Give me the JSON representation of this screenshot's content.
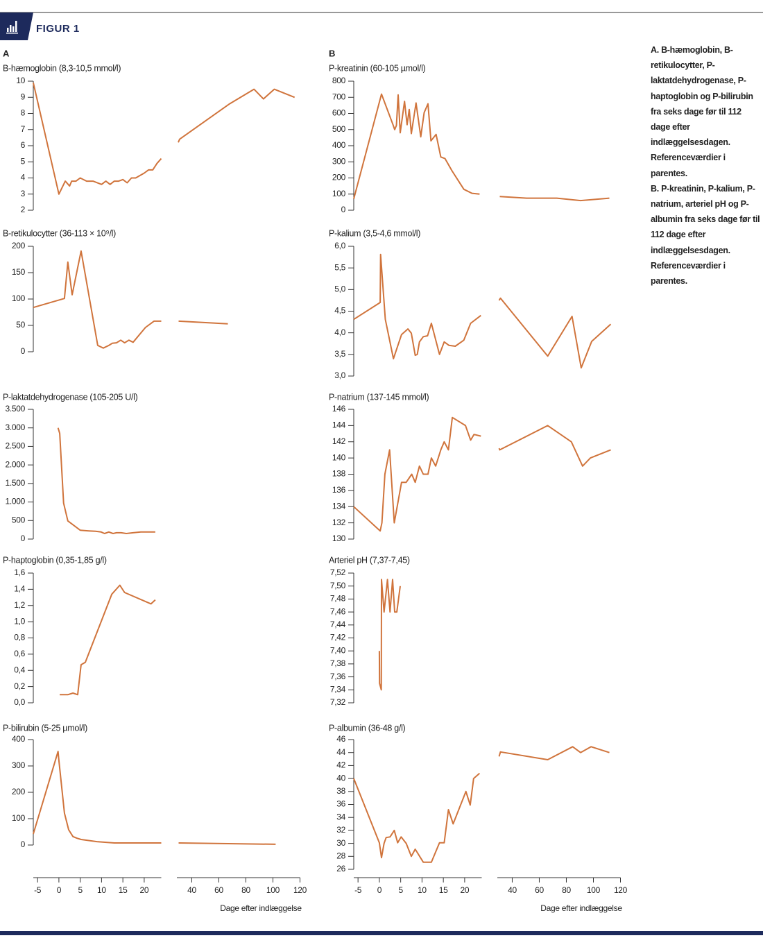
{
  "figure_label": "FIGUR 1",
  "panels": [
    {
      "label": "A"
    },
    {
      "label": "B"
    }
  ],
  "caption": [
    "A. B-hæmoglobin, B-retikulocytter, P-laktatdehydrogenase, P-haptoglobin og P-bilirubin fra seks  dage før til 112 dage efter indlæggelsesdagen. Referenceværdier i parentes.",
    "B. P-kreatinin, P-kalium, P-natrium, arteriel pH og P-albumin fra seks dage før til 112 dage efter indlæggelsesdagen. Referenceværdier i parentes."
  ],
  "x_axis": {
    "label": "Dage efter indlæggelse",
    "segments": [
      {
        "xlim": [
          -6,
          24
        ],
        "xticks": [
          -5,
          0,
          5,
          10,
          15,
          20
        ]
      },
      {
        "xlim": [
          29,
          120
        ],
        "xticks": [
          40,
          60,
          80,
          100,
          120
        ]
      }
    ]
  },
  "chart_data": [
    {
      "type": "line",
      "title": "B-hæmoglobin (8,3-10,5 mmol/l)",
      "color": "#d0743c",
      "ylim": [
        2,
        10
      ],
      "yticks": [
        2,
        3,
        4,
        5,
        6,
        7,
        8,
        9,
        10
      ],
      "x": [
        -6,
        0,
        1.5,
        2.5,
        3,
        4,
        5,
        6.5,
        8,
        10,
        11,
        12,
        13,
        14,
        15,
        16,
        17,
        18,
        20,
        21,
        22,
        23,
        24,
        null,
        30,
        31,
        68,
        86,
        93,
        101,
        116
      ],
      "values": [
        9.9,
        3.0,
        3.8,
        3.5,
        3.8,
        3.8,
        4.0,
        3.8,
        3.8,
        3.6,
        3.8,
        3.6,
        3.8,
        3.8,
        3.9,
        3.7,
        4.0,
        4.0,
        4.3,
        4.5,
        4.5,
        4.9,
        5.2,
        null,
        6.2,
        6.4,
        8.6,
        9.5,
        8.9,
        9.5,
        9.0
      ]
    },
    {
      "type": "line",
      "title": "B-retikulocytter (36-113 × 10⁹/l)",
      "color": "#d0743c",
      "ylim": [
        0,
        200
      ],
      "yticks": [
        0,
        50,
        100,
        150,
        200
      ],
      "x": [
        -6,
        1.3,
        2.1,
        3.1,
        5.2,
        9.1,
        10.4,
        11.7,
        12.5,
        13.5,
        14.5,
        15.4,
        16.4,
        17.4,
        20.3,
        22.3,
        24,
        null,
        30.3,
        66.7
      ],
      "values": [
        84,
        101,
        170,
        108,
        191,
        12,
        7,
        12,
        16,
        17,
        22,
        17,
        22,
        18,
        46,
        58,
        58,
        null,
        58,
        53
      ]
    },
    {
      "type": "line",
      "title": "P-laktatdehydrogenase (105-205 U/l)",
      "color": "#d0743c",
      "ylim": [
        0,
        3500
      ],
      "yticks": [
        0,
        500,
        {
          "value": 1000,
          "label": "1.000"
        },
        {
          "value": 1500,
          "label": "1.500"
        },
        {
          "value": 2000,
          "label": "2.000"
        },
        {
          "value": 2500,
          "label": "2.500"
        },
        {
          "value": 3000,
          "label": "3.000"
        },
        {
          "value": 3500,
          "label": "3.500"
        }
      ],
      "x": [
        -0.2,
        0.2,
        1.1,
        2.1,
        5,
        7,
        8.6,
        9.9,
        10.7,
        11.7,
        12.7,
        13.5,
        14.6,
        15.8,
        17.4,
        19.2,
        22.6
      ],
      "values": [
        3000,
        2850,
        970,
        490,
        240,
        220,
        210,
        190,
        150,
        190,
        150,
        170,
        170,
        150,
        170,
        190,
        190
      ]
    },
    {
      "type": "line",
      "title": "P-haptoglobin (0,35-1,85 g/l)",
      "color": "#d0743c",
      "ylim": [
        0,
        1.6
      ],
      "yticks": [
        {
          "value": 0,
          "label": "0,0"
        },
        {
          "value": 0.2,
          "label": "0,2"
        },
        {
          "value": 0.4,
          "label": "0,4"
        },
        {
          "value": 0.6,
          "label": "0,6"
        },
        {
          "value": 0.8,
          "label": "0,8"
        },
        {
          "value": 1.0,
          "label": "1,0"
        },
        {
          "value": 1.2,
          "label": "1,2"
        },
        {
          "value": 1.4,
          "label": "1,4"
        },
        {
          "value": 1.6,
          "label": "1,6"
        }
      ],
      "x": [
        0.2,
        2.1,
        3.3,
        4.4,
        5.2,
        6.2,
        12.4,
        14.3,
        15.4,
        21.6,
        22.6
      ],
      "values": [
        0.1,
        0.1,
        0.12,
        0.1,
        0.47,
        0.5,
        1.34,
        1.45,
        1.36,
        1.22,
        1.27
      ]
    },
    {
      "type": "line",
      "title": "P-bilirubin (5-25 µmol/l)",
      "color": "#d0743c",
      "ylim": [
        0,
        400
      ],
      "yticks": [
        0,
        100,
        200,
        300,
        400
      ],
      "x": [
        -6,
        -0.2,
        0,
        1.3,
        2.3,
        3.3,
        4.2,
        5.2,
        8.9,
        13,
        24,
        null,
        30.3,
        102
      ],
      "values": [
        42,
        355,
        321,
        121,
        58,
        32,
        26,
        21,
        13,
        8,
        8,
        null,
        8,
        3
      ]
    },
    {
      "type": "line",
      "title": "P-kreatinin (60-105 µmol/l)",
      "color": "#d0743c",
      "ylim": [
        0,
        800
      ],
      "yticks": [
        0,
        100,
        200,
        300,
        400,
        500,
        600,
        700,
        800
      ],
      "x": [
        -6,
        0.5,
        3.2,
        3.6,
        4,
        4.4,
        4.9,
        5.9,
        6.5,
        7,
        7.5,
        8.6,
        9.7,
        10.5,
        11.4,
        12.1,
        13.3,
        14.4,
        15.4,
        17,
        19.8,
        21.7,
        23.5,
        null,
        30.8,
        50.7,
        73,
        90.5,
        111.8
      ],
      "values": [
        70,
        720,
        530,
        500,
        525,
        715,
        480,
        675,
        530,
        625,
        475,
        665,
        455,
        605,
        660,
        430,
        470,
        330,
        320,
        245,
        130,
        105,
        100,
        null,
        85,
        75,
        75,
        60,
        75
      ]
    },
    {
      "type": "line",
      "title": "P-kalium (3,5-4,6 mmol/l)",
      "color": "#d0743c",
      "ylim": [
        3,
        6
      ],
      "yticks": [
        {
          "value": 3.0,
          "label": "3,0"
        },
        {
          "value": 3.5,
          "label": "3,5"
        },
        {
          "value": 4.0,
          "label": "4,0"
        },
        {
          "value": 4.5,
          "label": "4,5"
        },
        {
          "value": 5.0,
          "label": "5,0"
        },
        {
          "value": 5.5,
          "label": "5,5"
        },
        {
          "value": 6.0,
          "label": "6,0"
        }
      ],
      "x": [
        -6,
        0.2,
        0.3,
        1.4,
        3.3,
        5.2,
        6.7,
        7.5,
        8.4,
        8.9,
        9.4,
        10.3,
        11.3,
        12.2,
        14.1,
        15.2,
        16.3,
        17.8,
        19.8,
        21.4,
        23.8,
        null,
        30.3,
        31.3,
        66.2,
        84.2,
        91,
        98.7,
        112.8
      ],
      "values": [
        4.31,
        4.7,
        5.81,
        4.31,
        3.4,
        3.96,
        4.09,
        3.99,
        3.48,
        3.5,
        3.79,
        3.91,
        3.93,
        4.22,
        3.5,
        3.79,
        3.71,
        3.69,
        3.83,
        4.22,
        4.4,
        null,
        4.75,
        4.8,
        3.46,
        4.38,
        3.19,
        3.8,
        4.2
      ]
    },
    {
      "type": "line",
      "title": "P-natrium (137-145 mmol/l)",
      "color": "#d0743c",
      "ylim": [
        130,
        146
      ],
      "yticks": [
        130,
        132,
        134,
        136,
        138,
        140,
        142,
        144,
        146
      ],
      "x": [
        -6,
        0.2,
        0.6,
        1.3,
        2.4,
        3.5,
        5.2,
        6.3,
        7.6,
        8.4,
        9.4,
        10.3,
        11.4,
        12.2,
        13.2,
        14.4,
        15.2,
        16.2,
        17.1,
        20.2,
        21.4,
        22.2,
        23.8,
        null,
        30.3,
        30.8,
        66.2,
        83.7,
        92,
        97.8,
        112.8
      ],
      "values": [
        134,
        131,
        132,
        138,
        141,
        132,
        137,
        137,
        138,
        137,
        139,
        138,
        138,
        140,
        139,
        141,
        142,
        141,
        145,
        144,
        142.2,
        142.9,
        142.7,
        null,
        141.2,
        141,
        144,
        142,
        139,
        140,
        141
      ]
    },
    {
      "type": "line",
      "title": "Arteriel pH (7,37-7,45)",
      "color": "#d0743c",
      "ylim": [
        7.32,
        7.52
      ],
      "yticks": [
        {
          "value": 7.32,
          "label": "7,32"
        },
        {
          "value": 7.34,
          "label": "7,34"
        },
        {
          "value": 7.36,
          "label": "7,36"
        },
        {
          "value": 7.38,
          "label": "7,38"
        },
        {
          "value": 7.4,
          "label": "7,40"
        },
        {
          "value": 7.42,
          "label": "7,42"
        },
        {
          "value": 7.44,
          "label": "7,44"
        },
        {
          "value": 7.46,
          "label": "7,46"
        },
        {
          "value": 7.48,
          "label": "7,48"
        },
        {
          "value": 7.5,
          "label": "7,50"
        },
        {
          "value": 7.52,
          "label": "7,52"
        }
      ],
      "x": [
        0,
        0.05,
        0.45,
        0.5,
        1.1,
        1.9,
        2.5,
        3.1,
        3.6,
        4.1,
        4.9
      ],
      "values": [
        7.4,
        7.35,
        7.34,
        7.51,
        7.46,
        7.51,
        7.46,
        7.51,
        7.46,
        7.46,
        7.5
      ]
    },
    {
      "type": "line",
      "title": "P-albumin (36-48 g/l)",
      "color": "#d0743c",
      "ylim": [
        26,
        46
      ],
      "yticks": [
        26,
        28,
        30,
        32,
        34,
        36,
        38,
        40,
        42,
        44,
        46
      ],
      "x": [
        -6,
        0,
        0.5,
        1.1,
        1.6,
        2.5,
        3.5,
        4.3,
        5.1,
        6.3,
        7.5,
        8.4,
        10.3,
        12.2,
        14.1,
        15.2,
        16.2,
        17.3,
        20.3,
        21.3,
        22.1,
        23.5,
        null,
        30.3,
        31.3,
        66.2,
        84.7,
        90.5,
        98.3,
        111.8
      ],
      "values": [
        40,
        30.1,
        27.8,
        30,
        30.9,
        31,
        32,
        30.1,
        31,
        30,
        28,
        29.1,
        27.1,
        27.1,
        30.1,
        30.1,
        35.2,
        33,
        38,
        35.9,
        40,
        40.8,
        null,
        43.4,
        44.1,
        42.9,
        44.9,
        44,
        44.9,
        44
      ]
    }
  ]
}
